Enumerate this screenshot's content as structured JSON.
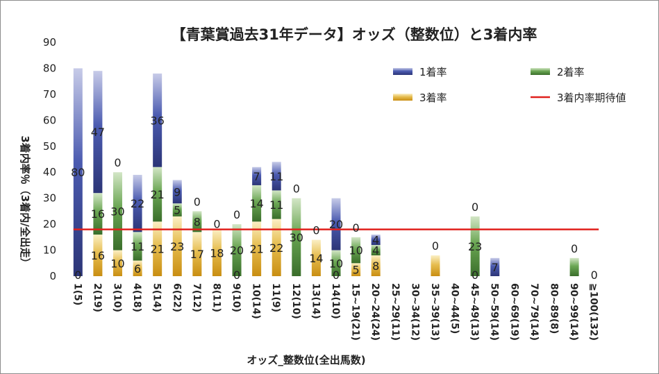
{
  "chart_data": {
    "type": "bar",
    "stacked": true,
    "title": "【青葉賞過去31年データ】オッズ（整数位）と3着内率",
    "xlabel": "オッズ_整数位(全出馬数)",
    "ylabel": "3着内率％（3着内/全出走）",
    "ylim": [
      0,
      90
    ],
    "yticks": [
      0,
      10,
      20,
      30,
      40,
      50,
      60,
      70,
      80,
      90
    ],
    "categories": [
      "1(5)",
      "2(19)",
      "3(10)",
      "4(18)",
      "5(14)",
      "6(22)",
      "7(12)",
      "8(11)",
      "9(10)",
      "10(14)",
      "11(9)",
      "12(10)",
      "13(14)",
      "14(10)",
      "15~19(21)",
      "20~24(24)",
      "25~29(11)",
      "30~34(12)",
      "35~39(13)",
      "40~44(5)",
      "45~49(13)",
      "50~59(14)",
      "60~69(19)",
      "70~79(14)",
      "80~89(8)",
      "90~99(14)",
      "≧100(132)"
    ],
    "series": [
      {
        "name": "1着率",
        "color": "#3b4aa0",
        "values": [
          80,
          47,
          0,
          22,
          36,
          9,
          0,
          0,
          0,
          7,
          11,
          0,
          0,
          20,
          0,
          4,
          0,
          0,
          0,
          0,
          0,
          7,
          0,
          0,
          0,
          0,
          0
        ]
      },
      {
        "name": "2着率",
        "color": "#4f8a3a",
        "values": [
          0,
          16,
          30,
          11,
          21,
          5,
          8,
          0,
          20,
          14,
          11,
          30,
          0,
          10,
          10,
          4,
          0,
          0,
          0,
          0,
          23,
          0,
          0,
          0,
          0,
          7,
          0
        ]
      },
      {
        "name": "3着率",
        "color": "#d4a020",
        "values": [
          0,
          16,
          10,
          6,
          21,
          23,
          17,
          18,
          0,
          21,
          22,
          0,
          14,
          0,
          5,
          8,
          0,
          0,
          8,
          0,
          0,
          0,
          0,
          0,
          0,
          0,
          0
        ]
      }
    ],
    "reference_line": {
      "name": "3着内率期待値",
      "value": 18,
      "color": "#e0201c"
    },
    "labels": {
      "s3": [
        "0",
        "16",
        "10",
        "6",
        "21",
        "23",
        "17",
        "18",
        "0",
        "21",
        "22",
        "",
        "14",
        "0",
        "5",
        "8",
        "",
        "",
        "",
        "",
        "0",
        "",
        "",
        "",
        "",
        "",
        "0"
      ],
      "s2": [
        "",
        "16",
        "30",
        "11",
        "21",
        "5",
        "8",
        "0",
        "20",
        "14",
        "11",
        "30",
        "",
        "10",
        "10",
        "4",
        "",
        "",
        "",
        "",
        "23",
        "",
        "",
        "",
        "",
        "",
        ""
      ],
      "s1": [
        "80",
        "47",
        "0",
        "22",
        "36",
        "9",
        "0",
        "",
        "0",
        "7",
        "11",
        "0",
        "0",
        "20",
        "0",
        "4",
        "",
        "",
        "0",
        "",
        "0",
        "7",
        "",
        "",
        "",
        "0",
        ""
      ]
    }
  }
}
